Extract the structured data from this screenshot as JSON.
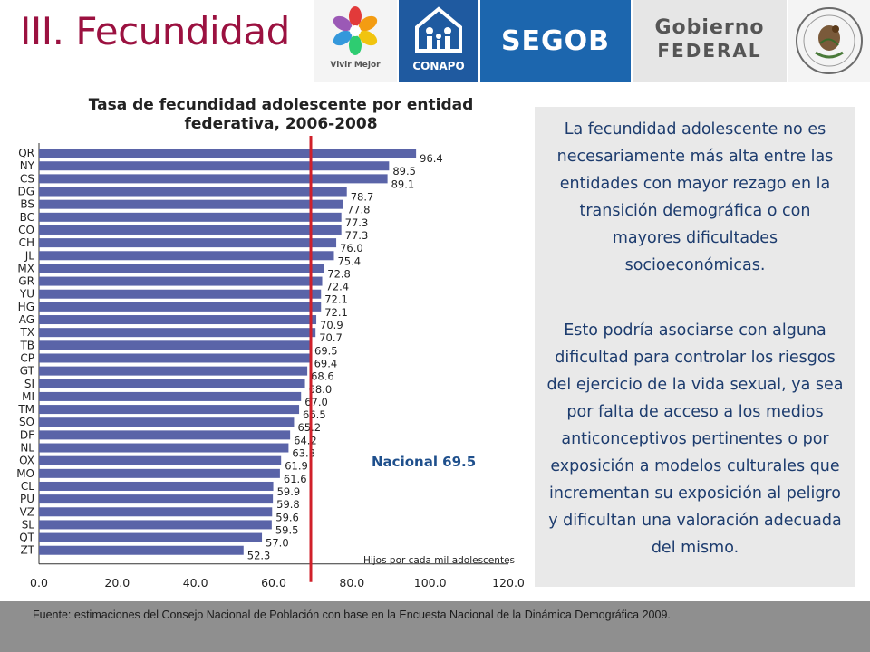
{
  "header": {
    "title": "III. Fecundidad",
    "logos": {
      "vivir_mejor": "Vivir Mejor",
      "conapo": "CONAPO",
      "segob": "SEGOB",
      "gobierno_line1": "Gobierno",
      "gobierno_line2": "FEDERAL"
    },
    "colors": {
      "title": "#9b1140",
      "bar_blue": "#1e6ab3"
    }
  },
  "side_panel": {
    "paragraph1": "La fecundidad adolescente no es necesariamente más alta entre las entidades con mayor rezago en la transición demográfica o con mayores dificultades socioeconómicas.",
    "paragraph2": "Esto podría asociarse con alguna dificultad para controlar los riesgos del ejercicio de la vida sexual, ya sea por falta de acceso a los medios anticonceptivos pertinentes o por exposición a modelos culturales que incrementan su exposición al peligro y dificultan una valoración adecuada del mismo."
  },
  "footer": {
    "source": "Fuente: estimaciones del Consejo Nacional de Población con base en la Encuesta Nacional de la Dinámica Demográfica 2009."
  },
  "chart_data": {
    "type": "bar",
    "orientation": "horizontal",
    "title": "Tasa de fecundidad adolescente por entidad federativa, 2006-2008",
    "xlabel": "Hijos por cada mil adolescentes",
    "xlim": [
      0,
      120
    ],
    "xticks": [
      "0.0",
      "20.0",
      "40.0",
      "60.0",
      "80.0",
      "100.0",
      "120.0"
    ],
    "bar_color": "#5a64a8",
    "reference_line": {
      "value": 69.5,
      "label": "Nacional 69.5",
      "color": "#d0202a"
    },
    "categories": [
      "QR",
      "NY",
      "CS",
      "DG",
      "BS",
      "BC",
      "CO",
      "CH",
      "JL",
      "MX",
      "GR",
      "YU",
      "HG",
      "AG",
      "TX",
      "TB",
      "CP",
      "GT",
      "SI",
      "MI",
      "TM",
      "SO",
      "DF",
      "NL",
      "OX",
      "MO",
      "CL",
      "PU",
      "VZ",
      "SL",
      "QT",
      "ZT"
    ],
    "values": [
      96.4,
      89.5,
      89.1,
      78.7,
      77.8,
      77.3,
      77.3,
      76.0,
      75.4,
      72.8,
      72.4,
      72.1,
      72.1,
      70.9,
      70.7,
      69.5,
      69.4,
      68.6,
      68.0,
      67.0,
      66.5,
      65.2,
      64.2,
      63.8,
      61.9,
      61.6,
      59.9,
      59.8,
      59.6,
      59.5,
      57.0,
      52.3
    ],
    "value_labels": [
      "96.4",
      "89.5",
      "89.1",
      "78.7",
      "77.8",
      "77.3",
      "77.3",
      "76.0",
      "75.4",
      "72.8",
      "72.4",
      "72.1",
      "72.1",
      "70.9",
      "70.7",
      "69.5",
      "69.4",
      "68.6",
      "68.0",
      "67.0",
      "66.5",
      "65.2",
      "64.2",
      "63.8",
      "61.9",
      "61.6",
      "59.9",
      "59.8",
      "59.6",
      "59.5",
      "57.0",
      "52.3"
    ]
  }
}
